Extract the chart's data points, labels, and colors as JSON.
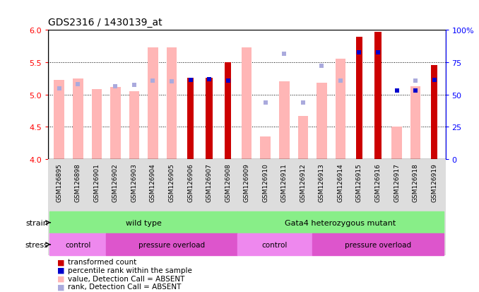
{
  "title": "GDS2316 / 1430139_at",
  "samples": [
    "GSM126895",
    "GSM126898",
    "GSM126901",
    "GSM126902",
    "GSM126903",
    "GSM126904",
    "GSM126905",
    "GSM126906",
    "GSM126907",
    "GSM126908",
    "GSM126909",
    "GSM126910",
    "GSM126911",
    "GSM126912",
    "GSM126913",
    "GSM126914",
    "GSM126915",
    "GSM126916",
    "GSM126917",
    "GSM126918",
    "GSM126919"
  ],
  "value_absent": [
    5.23,
    5.25,
    5.08,
    5.12,
    5.05,
    5.73,
    5.73,
    null,
    null,
    null,
    5.73,
    4.35,
    5.2,
    4.67,
    5.18,
    5.55,
    null,
    null,
    4.5,
    5.13,
    null
  ],
  "rank_absent_val": [
    5.09,
    5.16,
    null,
    5.13,
    5.15,
    5.22,
    5.2,
    null,
    null,
    null,
    null,
    4.87,
    5.63,
    4.87,
    5.45,
    5.22,
    null,
    null,
    null,
    5.22,
    null
  ],
  "value_present": [
    null,
    null,
    null,
    null,
    null,
    null,
    null,
    5.26,
    5.26,
    5.5,
    null,
    null,
    null,
    null,
    null,
    null,
    5.9,
    5.97,
    null,
    null,
    5.46
  ],
  "rank_present_val": [
    null,
    null,
    null,
    null,
    null,
    null,
    null,
    5.23,
    5.24,
    5.22,
    null,
    null,
    null,
    null,
    null,
    null,
    5.65,
    5.65,
    5.06,
    5.06,
    5.23
  ],
  "absent_value_color": "#ffb6b6",
  "absent_rank_color": "#aaaadd",
  "present_value_color": "#cc0000",
  "present_rank_color": "#0000cc",
  "ylim_left": [
    4.0,
    6.0
  ],
  "ylim_right": [
    0,
    100
  ],
  "yticks_left": [
    4.0,
    4.5,
    5.0,
    5.5,
    6.0
  ],
  "yticks_right": [
    0,
    25,
    50,
    75,
    100
  ],
  "ytick_labels_right": [
    "0",
    "25",
    "50",
    "75",
    "100%"
  ],
  "grid_lines": [
    4.5,
    5.0,
    5.5
  ],
  "strain_groups": [
    {
      "label": "wild type",
      "start": 0,
      "end": 9,
      "color": "#88ee88"
    },
    {
      "label": "Gata4 heterozygous mutant",
      "start": 10,
      "end": 20,
      "color": "#88ee88"
    }
  ],
  "stress_groups": [
    {
      "label": "control",
      "start": 0,
      "end": 2,
      "color": "#ee88ee"
    },
    {
      "label": "pressure overload",
      "start": 3,
      "end": 9,
      "color": "#dd55cc"
    },
    {
      "label": "control",
      "start": 10,
      "end": 13,
      "color": "#ee88ee"
    },
    {
      "label": "pressure overload",
      "start": 14,
      "end": 20,
      "color": "#dd55cc"
    }
  ],
  "legend": [
    {
      "color": "#cc0000",
      "label": "transformed count"
    },
    {
      "color": "#0000cc",
      "label": "percentile rank within the sample"
    },
    {
      "color": "#ffb6b6",
      "label": "value, Detection Call = ABSENT"
    },
    {
      "color": "#aaaadd",
      "label": "rank, Detection Call = ABSENT"
    }
  ]
}
